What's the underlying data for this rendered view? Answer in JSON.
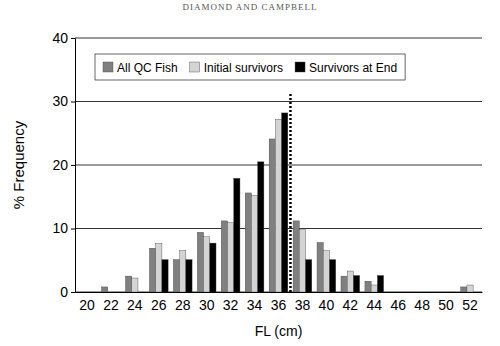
{
  "chart_data": {
    "type": "bar",
    "title": "DIAMOND AND CAMPBELL",
    "x_label": "FL (cm)",
    "y_label": "% Frequency",
    "categories": [
      "20",
      "22",
      "24",
      "26",
      "28",
      "30",
      "32",
      "34",
      "36",
      "38",
      "40",
      "42",
      "44",
      "46",
      "48",
      "50",
      "52"
    ],
    "series": [
      {
        "name": "All QC Fish",
        "color": "#808080",
        "values": [
          0,
          0.8,
          2.5,
          6.9,
          5.1,
          9.4,
          11.2,
          15.6,
          24.1,
          11.2,
          7.8,
          2.5,
          1.7,
          0,
          0,
          0,
          0.8
        ]
      },
      {
        "name": "Initial survivors",
        "color": "#d4d4d4",
        "values": [
          0,
          0,
          2.2,
          7.6,
          6.5,
          8.7,
          10.9,
          15.2,
          27.2,
          9.8,
          6.5,
          3.3,
          1.1,
          0,
          0,
          0,
          1.1
        ]
      },
      {
        "name": "Survivors at End",
        "color": "#000000",
        "values": [
          0,
          0,
          0,
          5.1,
          5.1,
          7.7,
          17.9,
          20.5,
          28.2,
          5.1,
          5.1,
          2.6,
          2.6,
          0,
          0,
          0,
          0
        ]
      }
    ],
    "annotations": [
      {
        "type": "vline",
        "x": 37,
        "line_style": "dotted"
      }
    ],
    "ylim": [
      0,
      40
    ],
    "yticks": [
      0,
      10,
      20,
      30,
      40
    ],
    "grid": true,
    "legend": "top"
  }
}
